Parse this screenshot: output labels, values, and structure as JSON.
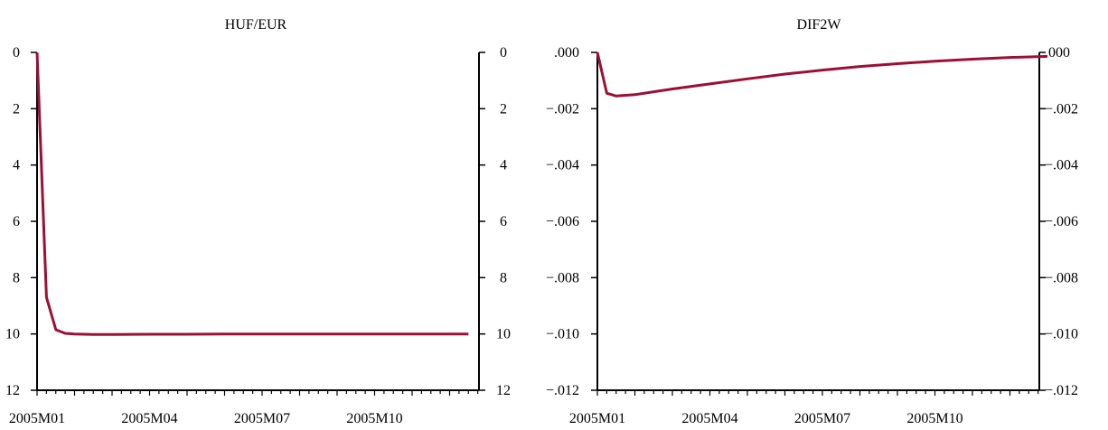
{
  "colors": {
    "line": "#9b1035",
    "axis": "#000000",
    "background": "#ffffff"
  },
  "chart_data": [
    {
      "type": "line",
      "title": "HUF/EUR",
      "xlabel": "",
      "ylabel": "",
      "y_axis": "inverted, mirrored on left and right",
      "ylim": [
        0,
        12
      ],
      "yticks": [
        0,
        2,
        4,
        6,
        8,
        10,
        12
      ],
      "ytick_labels": [
        "0",
        "2",
        "4",
        "6",
        "8",
        "10",
        "12"
      ],
      "x_period": [
        "2005M01",
        "2005M12"
      ],
      "xtick_labels": [
        "2005M01",
        "2005M04",
        "2005M07",
        "2005M10"
      ],
      "grid": false,
      "legend": "none",
      "series": [
        {
          "x_months": [
            0,
            0.25,
            0.5,
            0.75,
            1,
            1.5,
            2,
            3,
            4,
            5,
            6,
            7,
            8,
            9,
            10,
            11,
            11.5
          ],
          "values": [
            0,
            8.7,
            9.85,
            9.98,
            10.0,
            10.02,
            10.02,
            10.01,
            10.01,
            10.0,
            10.0,
            10.0,
            10.0,
            10.0,
            10.0,
            10.0,
            10.0
          ]
        }
      ]
    },
    {
      "type": "line",
      "title": "DIF2W",
      "xlabel": "",
      "ylabel": "",
      "y_axis": "mirrored on left and right",
      "ylim": [
        -0.012,
        0.0
      ],
      "yticks": [
        0,
        -0.002,
        -0.004,
        -0.006,
        -0.008,
        -0.01,
        -0.012
      ],
      "ytick_labels": [
        ".000",
        "−.002",
        "−.004",
        "−.006",
        "−.008",
        "−.010",
        "−.012"
      ],
      "x_period": [
        "2005M01",
        "2005M12"
      ],
      "xtick_labels": [
        "2005M01",
        "2005M04",
        "2005M07",
        "2005M10"
      ],
      "grid": false,
      "legend": "none",
      "series": [
        {
          "x_months": [
            0,
            0.25,
            0.5,
            1,
            1.5,
            2,
            3,
            4,
            5,
            6,
            7,
            8,
            9,
            10,
            11,
            12
          ],
          "values": [
            0,
            -0.00145,
            -0.00155,
            -0.0015,
            -0.0014,
            -0.0013,
            -0.00112,
            -0.00094,
            -0.00077,
            -0.00063,
            -0.0005,
            -0.0004,
            -0.00031,
            -0.00024,
            -0.00018,
            -0.00014
          ]
        }
      ]
    }
  ]
}
